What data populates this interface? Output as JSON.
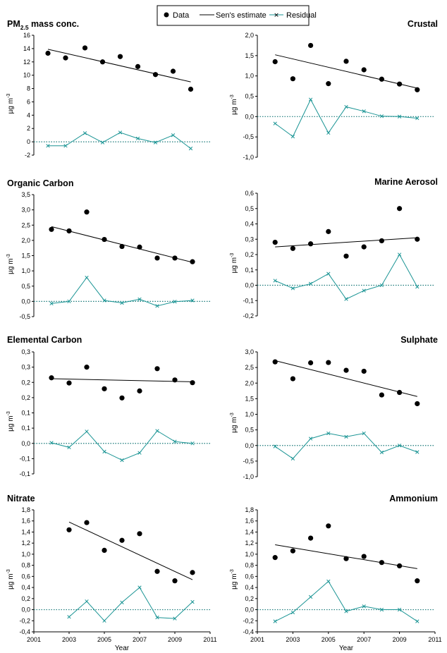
{
  "legend": {
    "data_label": "Data",
    "sen_label": "Sen's estimate",
    "residual_label": "Residual"
  },
  "colors": {
    "data": "#000000",
    "trend": "#000000",
    "residual": "#1a9494",
    "zero_line": "#1a7a7a"
  },
  "chart_data": [
    {
      "type": "scatter",
      "title": "PM",
      "title_sub": "2.5",
      "title_tail": " mass conc.",
      "title_align": "left",
      "ylabel": "µg m",
      "ylabel_sup": "-3",
      "ylim": [
        -2,
        16
      ],
      "yticks": [
        -2,
        0,
        2,
        4,
        6,
        8,
        10,
        12,
        14,
        16
      ],
      "ytick_labels": [
        "-2",
        "0",
        "2",
        "4",
        "6",
        "8",
        "10",
        "12",
        "14",
        "16"
      ],
      "xlim": [
        2001,
        2011
      ],
      "x": [
        2001.8,
        2002.8,
        2003.9,
        2004.9,
        2005.9,
        2006.9,
        2007.9,
        2008.9,
        2009.9
      ],
      "data": [
        13.3,
        12.6,
        14.1,
        12.0,
        12.8,
        11.3,
        10.1,
        10.6,
        7.9
      ],
      "trend": [
        [
          2001.8,
          13.9
        ],
        [
          2009.9,
          9.0
        ]
      ],
      "residual": [
        -0.6,
        -0.6,
        1.3,
        -0.1,
        1.4,
        0.5,
        -0.1,
        1.0,
        -1.0
      ]
    },
    {
      "type": "scatter",
      "title": "Crustal",
      "title_sub": "",
      "title_tail": "",
      "title_align": "right",
      "ylabel": "µg m",
      "ylabel_sup": "-3",
      "ylim": [
        -1.0,
        2.0
      ],
      "yticks": [
        -1.0,
        -0.5,
        0.0,
        0.5,
        1.0,
        1.5,
        2.0
      ],
      "ytick_labels": [
        "-1,0",
        "-0,5",
        "0,0",
        "0,5",
        "1,0",
        "1,5",
        "2,0"
      ],
      "xlim": [
        2001,
        2011
      ],
      "x": [
        2002,
        2003,
        2004,
        2005,
        2006,
        2007,
        2008,
        2009,
        2010
      ],
      "data": [
        1.35,
        0.93,
        1.75,
        0.81,
        1.36,
        1.15,
        0.92,
        0.8,
        0.66
      ],
      "trend": [
        [
          2002,
          1.52
        ],
        [
          2010,
          0.7
        ]
      ],
      "residual": [
        -0.17,
        -0.49,
        0.42,
        -0.4,
        0.24,
        0.13,
        0.01,
        0.0,
        -0.04
      ]
    },
    {
      "type": "scatter",
      "title": "Organic Carbon",
      "title_sub": "",
      "title_tail": "",
      "title_align": "left",
      "ylabel": "µg m",
      "ylabel_sup": "-3",
      "ylim": [
        -0.5,
        3.5
      ],
      "yticks": [
        -0.5,
        0.0,
        0.5,
        1.0,
        1.5,
        2.0,
        2.5,
        3.0,
        3.5
      ],
      "ytick_labels": [
        "-0,5",
        "0,0",
        "0,5",
        "1,0",
        "1,5",
        "2,0",
        "2,5",
        "3,0",
        "3,5"
      ],
      "xlim": [
        2001,
        2011
      ],
      "x": [
        2002,
        2003,
        2004,
        2005,
        2006,
        2007,
        2008,
        2009,
        2010
      ],
      "data": [
        2.36,
        2.31,
        2.93,
        2.03,
        1.8,
        1.78,
        1.42,
        1.42,
        1.3
      ],
      "trend": [
        [
          2002,
          2.45
        ],
        [
          2010,
          1.28
        ]
      ],
      "residual": [
        -0.07,
        0.0,
        0.78,
        0.03,
        -0.05,
        0.07,
        -0.15,
        -0.01,
        0.03
      ]
    },
    {
      "type": "scatter",
      "title": "Marine Aerosol",
      "title_sub": "",
      "title_tail": "",
      "title_align": "right",
      "ylabel": "µg m",
      "ylabel_sup": "-3",
      "ylim": [
        -0.2,
        0.6
      ],
      "yticks": [
        -0.2,
        -0.1,
        0.0,
        0.1,
        0.2,
        0.3,
        0.4,
        0.5,
        0.6
      ],
      "ytick_labels": [
        "-0,2",
        "-0,1",
        "0,0",
        "0,1",
        "0,2",
        "0,3",
        "0,4",
        "0,5",
        "0,6"
      ],
      "xlim": [
        2001,
        2011
      ],
      "x": [
        2002,
        2003,
        2004,
        2005,
        2006,
        2007,
        2008,
        2009,
        2010
      ],
      "data": [
        0.28,
        0.24,
        0.27,
        0.35,
        0.19,
        0.25,
        0.29,
        0.5,
        0.3
      ],
      "trend": [
        [
          2002,
          0.25
        ],
        [
          2010,
          0.31
        ]
      ],
      "residual": [
        0.03,
        -0.02,
        0.01,
        0.075,
        -0.09,
        -0.035,
        0.0,
        0.2,
        -0.01
      ]
    },
    {
      "type": "scatter",
      "title": "Elemental Carbon",
      "title_sub": "",
      "title_tail": "",
      "title_align": "left",
      "ylabel": "µg m",
      "ylabel_sup": "-3",
      "ylim": [
        -0.1,
        0.3
      ],
      "yticks": [
        -0.1,
        -0.05,
        0.0,
        0.05,
        0.1,
        0.15,
        0.2,
        0.25,
        0.3
      ],
      "ytick_labels": [
        "-0,1",
        "-0,1",
        "0,0",
        "0,1",
        "0,1",
        "0,2",
        "0,2",
        "0,3",
        "0,3"
      ],
      "xlim": [
        2001,
        2011
      ],
      "x": [
        2002,
        2003,
        2004,
        2005,
        2006,
        2007,
        2008,
        2009,
        2010
      ],
      "data": [
        0.215,
        0.198,
        0.25,
        0.179,
        0.149,
        0.172,
        0.245,
        0.208,
        0.199
      ],
      "trend": [
        [
          2002,
          0.212
        ],
        [
          2010,
          0.202
        ]
      ],
      "residual": [
        0.002,
        -0.013,
        0.039,
        -0.027,
        -0.055,
        -0.031,
        0.041,
        0.006,
        0.0
      ]
    },
    {
      "type": "scatter",
      "title": "Sulphate",
      "title_sub": "",
      "title_tail": "",
      "title_align": "right",
      "ylabel": "µg m",
      "ylabel_sup": "-3",
      "ylim": [
        -1.0,
        3.0
      ],
      "yticks": [
        -1.0,
        -0.5,
        0.0,
        0.5,
        1.0,
        1.5,
        2.0,
        2.5,
        3.0
      ],
      "ytick_labels": [
        "-1,0",
        "-0,5",
        "0,0",
        "0,5",
        "1,0",
        "1,5",
        "2,0",
        "2,5",
        "3,0"
      ],
      "xlim": [
        2001,
        2011
      ],
      "x": [
        2002,
        2003,
        2004,
        2005,
        2006,
        2007,
        2008,
        2009,
        2010
      ],
      "data": [
        2.68,
        2.14,
        2.65,
        2.66,
        2.41,
        2.38,
        1.62,
        1.7,
        1.34
      ],
      "trend": [
        [
          2002,
          2.72
        ],
        [
          2010,
          1.57
        ]
      ],
      "residual": [
        -0.03,
        -0.42,
        0.22,
        0.39,
        0.28,
        0.39,
        -0.22,
        0.0,
        -0.21
      ]
    },
    {
      "type": "scatter",
      "title": "Nitrate",
      "title_sub": "",
      "title_tail": "",
      "title_align": "left",
      "ylabel": "µg m",
      "ylabel_sup": "-3",
      "ylim": [
        -0.4,
        1.8
      ],
      "yticks": [
        -0.4,
        -0.2,
        0.0,
        0.2,
        0.4,
        0.6,
        0.8,
        1.0,
        1.2,
        1.4,
        1.6,
        1.8
      ],
      "ytick_labels": [
        "-0,4",
        "-0,2",
        "0,0",
        "0,2",
        "0,4",
        "0,6",
        "0,8",
        "1,0",
        "1,2",
        "1,4",
        "1,6",
        "1,8"
      ],
      "xlim": [
        2001,
        2011
      ],
      "xticks": [
        2001,
        2003,
        2005,
        2007,
        2009,
        2011
      ],
      "xlabel": "Year",
      "x": [
        2003,
        2004,
        2005,
        2006,
        2007,
        2008,
        2009,
        2010
      ],
      "data": [
        1.44,
        1.57,
        1.07,
        1.25,
        1.37,
        0.69,
        0.52,
        0.67
      ],
      "trend": [
        [
          2003,
          1.58
        ],
        [
          2010,
          0.54
        ]
      ],
      "residual": [
        -0.13,
        0.15,
        -0.2,
        0.13,
        0.4,
        -0.14,
        -0.16,
        0.14
      ]
    },
    {
      "type": "scatter",
      "title": "Ammonium",
      "title_sub": "",
      "title_tail": "",
      "title_align": "right",
      "ylabel": "µg m",
      "ylabel_sup": "-3",
      "ylim": [
        -0.4,
        1.8
      ],
      "yticks": [
        -0.4,
        -0.2,
        0.0,
        0.2,
        0.4,
        0.6,
        0.8,
        1.0,
        1.2,
        1.4,
        1.6,
        1.8
      ],
      "ytick_labels": [
        "-0,4",
        "-0,2",
        "0,0",
        "0,2",
        "0,4",
        "0,6",
        "0,8",
        "1,0",
        "1,2",
        "1,4",
        "1,6",
        "1,8"
      ],
      "xlim": [
        2001,
        2011
      ],
      "xticks": [
        2001,
        2003,
        2005,
        2007,
        2009,
        2011
      ],
      "xlabel": "Year",
      "x": [
        2002,
        2003,
        2004,
        2005,
        2006,
        2007,
        2008,
        2009,
        2010
      ],
      "data": [
        0.94,
        1.06,
        1.29,
        1.51,
        0.92,
        0.96,
        0.85,
        0.79,
        0.52
      ],
      "trend": [
        [
          2002,
          1.17
        ],
        [
          2010,
          0.74
        ]
      ],
      "residual": [
        -0.21,
        -0.05,
        0.23,
        0.51,
        -0.03,
        0.06,
        0.0,
        0.0,
        -0.21
      ]
    }
  ]
}
